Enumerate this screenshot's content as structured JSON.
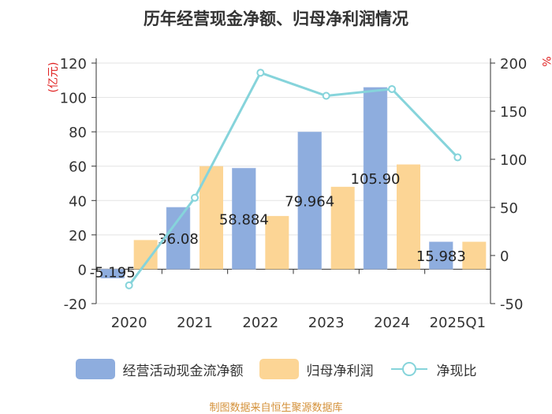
{
  "page": {
    "title": "历年经营现金净额、归母净利润情况",
    "footer": "制图数据来自恒生聚源数据库"
  },
  "chart_data": {
    "type": "bar",
    "categories": [
      "2020",
      "2021",
      "2022",
      "2023",
      "2024",
      "2025Q1"
    ],
    "series": [
      {
        "name": "经营活动现金流净额",
        "type": "bar",
        "axis": "left",
        "color": "#8eadde",
        "values": [
          -5.195,
          36.08,
          58.884,
          79.964,
          105.9,
          15.98
        ]
      },
      {
        "name": "归母净利润",
        "type": "bar",
        "axis": "left",
        "color": "#fcd595",
        "values": [
          17,
          60,
          31,
          48,
          61,
          16
        ]
      },
      {
        "name": "净现比",
        "type": "line",
        "axis": "right",
        "color": "#86d4db",
        "values": [
          -31,
          60,
          190,
          166,
          173,
          102
        ]
      }
    ],
    "data_labels": [
      "-5.195",
      "36.08",
      "58.884",
      "79.964",
      "105.90",
      "15.983"
    ],
    "left_axis": {
      "label": "(亿元)",
      "min": -20,
      "max": 120,
      "ticks": [
        -20,
        0,
        20,
        40,
        60,
        80,
        100,
        120
      ]
    },
    "right_axis": {
      "label": "%",
      "min": -50,
      "max": 200,
      "ticks": [
        -50,
        0,
        50,
        100,
        150,
        200
      ]
    },
    "grid": true,
    "legend_position": "bottom"
  }
}
